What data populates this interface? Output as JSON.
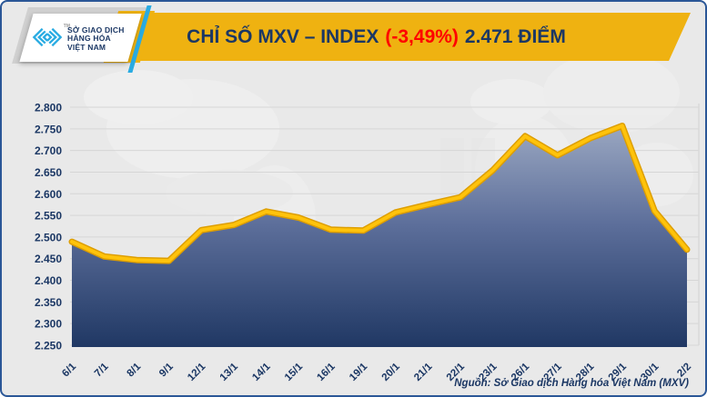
{
  "header": {
    "logo": {
      "line1": "SỞ GIAO DỊCH",
      "line2": "HÀNG HÓA",
      "line3": "VIỆT NAM",
      "tm": "TM"
    },
    "title": {
      "prefix": "CHỈ SỐ MXV – INDEX",
      "change": "(-3,49%)",
      "suffix": "2.471 ĐIỂM"
    }
  },
  "footer": {
    "source": "Nguồn: Sở Giao dịch Hàng hóa Việt Nam (MXV)"
  },
  "colors": {
    "banner_gold": "#efb211",
    "title_navy": "#1b3764",
    "change_red": "#ff0000",
    "logo_blue": "#29abe2",
    "card_border_blue": "#2b5797",
    "background_gray": "#e9e9e9",
    "grid_gray": "#d6d6d6"
  },
  "chart_data": {
    "type": "area",
    "title": "CHỈ SỐ MXV – INDEX (-3,49%) 2.471 ĐIỂM",
    "categories": [
      "6/1",
      "7/1",
      "8/1",
      "9/1",
      "12/1",
      "13/1",
      "14/1",
      "15/1",
      "16/1",
      "19/1",
      "20/1",
      "21/1",
      "22/1",
      "23/1",
      "26/1",
      "27/1",
      "28/1",
      "29/1",
      "30/1",
      "2/2"
    ],
    "values": [
      2.489,
      2.455,
      2.447,
      2.445,
      2.516,
      2.528,
      2.559,
      2.545,
      2.517,
      2.515,
      2.557,
      2.575,
      2.592,
      2.654,
      2.733,
      2.689,
      2.728,
      2.757,
      2.56,
      2.471
    ],
    "xlabel": "",
    "ylabel": "",
    "ylim": [
      2.25,
      2.8
    ],
    "y_tick_step": 0.05,
    "grid": true,
    "legend": "none",
    "x_label_rotation": -45,
    "line_color": "#ffc30b",
    "line_edge_color": "#dd9e00",
    "area_top_color": "#9aa7c1",
    "area_mid_color": "#5c6e9a",
    "area_bottom_color": "#203864",
    "axis_label_color": "#1b3764"
  }
}
